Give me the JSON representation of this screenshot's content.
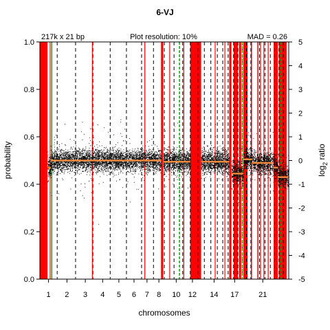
{
  "chart_data": {
    "type": "scatter",
    "title": "6-VJ",
    "annotations": {
      "left": "217k x 21 bp",
      "center": "Plot resolution: 10%",
      "right": "MAD = 0.26"
    },
    "xlabel": "chromosomes",
    "ylabel_left": "probability",
    "ylabel_right_base": "log",
    "ylabel_right_sub": "2",
    "ylabel_right_rest": " ratio",
    "ylim_left": [
      0,
      1
    ],
    "ylim_right": [
      -5,
      5
    ],
    "xlim": [
      0,
      23
    ],
    "y_ticks_left": [
      {
        "v": 0.0,
        "label": "0.0"
      },
      {
        "v": 0.2,
        "label": "0.2"
      },
      {
        "v": 0.4,
        "label": "0.4"
      },
      {
        "v": 0.6,
        "label": "0.6"
      },
      {
        "v": 0.8,
        "label": "0.8"
      },
      {
        "v": 1.0,
        "label": "1.0"
      }
    ],
    "y_ticks_right": [
      {
        "v": -5,
        "label": "-5"
      },
      {
        "v": -4,
        "label": "-4"
      },
      {
        "v": -3,
        "label": "-3"
      },
      {
        "v": -2,
        "label": "-2"
      },
      {
        "v": -1,
        "label": "-1"
      },
      {
        "v": 0,
        "label": "0"
      },
      {
        "v": 1,
        "label": "1"
      },
      {
        "v": 2,
        "label": "2"
      },
      {
        "v": 3,
        "label": "3"
      },
      {
        "v": 4,
        "label": "4"
      },
      {
        "v": 5,
        "label": "5"
      }
    ],
    "x_ticks": [
      {
        "v": 0.8,
        "label": "1"
      },
      {
        "v": 2.5,
        "label": "2"
      },
      {
        "v": 4.2,
        "label": "3"
      },
      {
        "v": 5.8,
        "label": "4"
      },
      {
        "v": 7.3,
        "label": "5"
      },
      {
        "v": 8.7,
        "label": "6"
      },
      {
        "v": 9.9,
        "label": "7"
      },
      {
        "v": 11.0,
        "label": "8"
      },
      {
        "v": 12.6,
        "label": "10"
      },
      {
        "v": 14.1,
        "label": "12"
      },
      {
        "v": 16.1,
        "label": "14"
      },
      {
        "v": 18.0,
        "label": "17"
      },
      {
        "v": 20.6,
        "label": "21"
      }
    ],
    "chromosome_boundaries": [
      1.6,
      3.3,
      4.9,
      6.5,
      8.0,
      9.4,
      10.5,
      11.5,
      12.4,
      13.2,
      13.9,
      14.6,
      15.2,
      15.8,
      16.4,
      16.9,
      17.4,
      17.9,
      18.3,
      18.7,
      19.1,
      19.5,
      20.3,
      20.8,
      21.3,
      21.7,
      22.1,
      22.5
    ],
    "red_bands": [
      [
        0.0,
        0.7
      ],
      [
        11.2,
        11.4
      ],
      [
        13.9,
        14.9
      ],
      [
        17.5,
        17.7
      ],
      [
        17.9,
        18.3
      ],
      [
        18.4,
        18.6
      ],
      [
        18.8,
        19.2
      ],
      [
        19.5,
        19.6
      ],
      [
        20.1,
        20.2
      ],
      [
        21.6,
        22.0
      ],
      [
        22.1,
        22.8
      ]
    ],
    "red_lines": [
      0.95,
      4.85,
      9.7,
      12.0,
      13.3,
      16.2,
      17.1,
      18.0,
      20.4,
      20.7,
      21.1,
      22.6
    ],
    "green_lines": [
      1.1,
      12.9,
      18.7,
      22.3
    ],
    "segments": [
      {
        "x": [
          0.7,
          1.0
        ],
        "y": 0.47
      },
      {
        "x": [
          1.0,
          11.2
        ],
        "y": 0.5
      },
      {
        "x": [
          11.4,
          13.9
        ],
        "y": 0.495
      },
      {
        "x": [
          14.9,
          17.5
        ],
        "y": 0.495
      },
      {
        "x": [
          17.7,
          18.8
        ],
        "y": 0.445
      },
      {
        "x": [
          18.8,
          19.6
        ],
        "y": 0.505
      },
      {
        "x": [
          19.6,
          21.6
        ],
        "y": 0.49
      },
      {
        "x": [
          21.6,
          22.0
        ],
        "y": 0.47
      },
      {
        "x": [
          22.0,
          23.0
        ],
        "y": 0.43
      }
    ],
    "grid": false,
    "legend": "none"
  }
}
